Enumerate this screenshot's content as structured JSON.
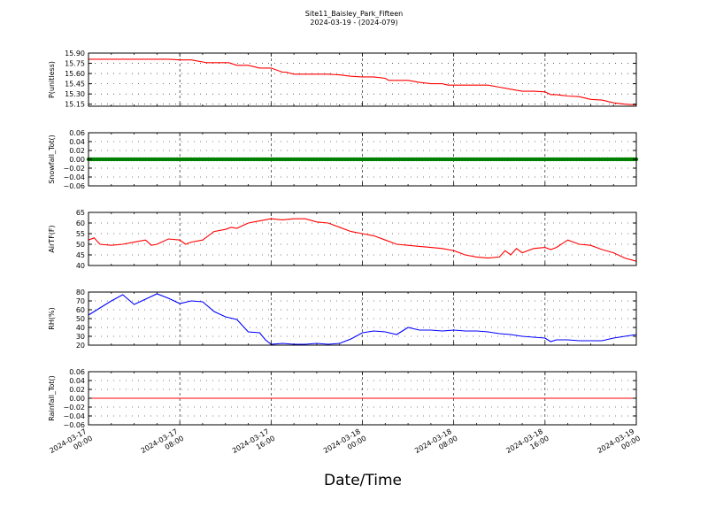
{
  "title": "Site11_Baisley_Park_Fifteen",
  "subtitle": "2024-03-19 - (2024-079)",
  "xlabel": "Date/Time",
  "chart_data": [
    {
      "type": "line",
      "ylabel": "P(unitless)",
      "ylim": [
        15.12,
        15.9
      ],
      "yticks": [
        "15.90",
        "15.75",
        "15.60",
        "15.45",
        "15.30",
        "15.15"
      ],
      "ytick_values": [
        15.9,
        15.75,
        15.6,
        15.45,
        15.3,
        15.15
      ],
      "grid": true,
      "series": [
        {
          "color": "#ff0000",
          "x": [
            0,
            1,
            2,
            3,
            4,
            4.4,
            5,
            6,
            6.3,
            7,
            8,
            9,
            10,
            10.3,
            11,
            12,
            12.3,
            13,
            14,
            15,
            16,
            17,
            17.3,
            18,
            19,
            20,
            21,
            22,
            23,
            24,
            25,
            26,
            26.3,
            27,
            28,
            29,
            30,
            31,
            31.5,
            32,
            33,
            34,
            35,
            36,
            37,
            38,
            39,
            40,
            40.5,
            41,
            42,
            43,
            44,
            45,
            46,
            47,
            48
          ],
          "y": [
            15.81,
            15.81,
            15.81,
            15.81,
            15.81,
            15.81,
            15.81,
            15.81,
            15.81,
            15.81,
            15.8,
            15.8,
            15.77,
            15.76,
            15.76,
            15.76,
            15.76,
            15.72,
            15.72,
            15.68,
            15.68,
            15.62,
            15.62,
            15.59,
            15.59,
            15.59,
            15.59,
            15.58,
            15.56,
            15.55,
            15.55,
            15.53,
            15.5,
            15.5,
            15.5,
            15.47,
            15.45,
            15.45,
            15.43,
            15.43,
            15.43,
            15.43,
            15.43,
            15.4,
            15.37,
            15.34,
            15.34,
            15.33,
            15.29,
            15.29,
            15.27,
            15.26,
            15.22,
            15.21,
            15.17,
            15.15,
            15.14
          ]
        }
      ]
    },
    {
      "type": "line",
      "ylabel": "Snowfall_Tot()",
      "ylim": [
        -0.06,
        0.06
      ],
      "yticks": [
        "0.06",
        "0.04",
        "0.02",
        "0.00",
        "−0.02",
        "−0.04",
        "−0.06"
      ],
      "ytick_values": [
        0.06,
        0.04,
        0.02,
        0,
        -0.02,
        -0.04,
        -0.06
      ],
      "grid": true,
      "series": [
        {
          "color": "#008000",
          "marker": "dot",
          "x": [
            0,
            48
          ],
          "y": [
            0,
            0
          ]
        }
      ]
    },
    {
      "type": "line",
      "ylabel": "AirTF(F)",
      "ylim": [
        40,
        65
      ],
      "yticks": [
        "65",
        "60",
        "55",
        "50",
        "45",
        "40"
      ],
      "ytick_values": [
        65,
        60,
        55,
        50,
        45,
        40
      ],
      "grid": true,
      "series": [
        {
          "color": "#ff0000",
          "x": [
            0,
            0.5,
            1,
            2,
            3,
            4,
            5,
            5.5,
            6,
            7,
            8,
            8.5,
            9,
            10,
            11,
            12,
            12.5,
            13,
            14,
            15,
            16,
            17,
            18,
            19,
            20,
            21,
            22,
            23,
            24,
            25,
            26,
            27,
            28,
            29,
            30,
            31,
            32,
            33,
            34,
            35,
            36,
            36.5,
            37,
            37.5,
            38,
            39,
            40,
            40.5,
            41,
            42,
            43,
            44,
            45,
            46,
            47,
            48
          ],
          "y": [
            52,
            53,
            50,
            49.5,
            50,
            51,
            52,
            49.5,
            50,
            52.5,
            52,
            50,
            51,
            52,
            56,
            57,
            58,
            57.5,
            60,
            61,
            62,
            61.5,
            62,
            62,
            60.5,
            60,
            58,
            56,
            55,
            54,
            52,
            50,
            49.5,
            49,
            48.5,
            48,
            47,
            45,
            44,
            43.5,
            44,
            47,
            45,
            48,
            46,
            48,
            48.5,
            47.5,
            48.5,
            52,
            50,
            49.5,
            47.5,
            46,
            43.5,
            42
          ]
        }
      ]
    },
    {
      "type": "line",
      "ylabel": "RH(%)",
      "ylim": [
        20,
        80
      ],
      "yticks": [
        "80",
        "70",
        "60",
        "50",
        "40",
        "30",
        "20"
      ],
      "ytick_values": [
        80,
        70,
        60,
        50,
        40,
        30,
        20
      ],
      "grid": true,
      "series": [
        {
          "color": "#0000ff",
          "x": [
            0,
            1,
            2,
            3,
            4,
            5,
            6,
            7,
            8,
            9,
            10,
            11,
            12,
            13,
            14,
            15,
            15.5,
            16,
            17,
            18,
            19,
            20,
            21,
            22,
            23,
            24,
            25,
            26,
            27,
            28,
            29,
            30,
            31,
            32,
            33,
            34,
            35,
            36,
            37,
            38,
            39,
            40,
            40.5,
            41,
            42,
            43,
            44,
            45,
            46,
            47,
            48
          ],
          "y": [
            54,
            62,
            70,
            77,
            66,
            72,
            78,
            73,
            67,
            70,
            69,
            58,
            52,
            49,
            35,
            34,
            26,
            21,
            22,
            21,
            21,
            22,
            21,
            22,
            27,
            34,
            36,
            35,
            32,
            40,
            37,
            37,
            36,
            37,
            36,
            36,
            35,
            33,
            32,
            30,
            29,
            28,
            24,
            26,
            26,
            25,
            25,
            25,
            28,
            30,
            32
          ]
        }
      ]
    },
    {
      "type": "line",
      "ylabel": "Rainfall_Tot()",
      "ylim": [
        -0.06,
        0.06
      ],
      "yticks": [
        "0.06",
        "0.04",
        "0.02",
        "0.00",
        "−0.02",
        "−0.04",
        "−0.06"
      ],
      "ytick_values": [
        0.06,
        0.04,
        0.02,
        0,
        -0.02,
        -0.04,
        -0.06
      ],
      "grid": true,
      "series": [
        {
          "color": "#ff0000",
          "x": [
            0,
            48
          ],
          "y": [
            0,
            0
          ]
        }
      ]
    }
  ],
  "x_axis": {
    "range_hours": [
      0,
      48
    ],
    "tick_hours": [
      0,
      8,
      16,
      24,
      32,
      40,
      48
    ],
    "tick_labels": [
      [
        "2024-03-17",
        "00:00"
      ],
      [
        "2024-03-17",
        "08:00"
      ],
      [
        "2024-03-17",
        "16:00"
      ],
      [
        "2024-03-18",
        "00:00"
      ],
      [
        "2024-03-18",
        "08:00"
      ],
      [
        "2024-03-18",
        "16:00"
      ],
      [
        "2024-03-19",
        "00:00"
      ]
    ]
  }
}
